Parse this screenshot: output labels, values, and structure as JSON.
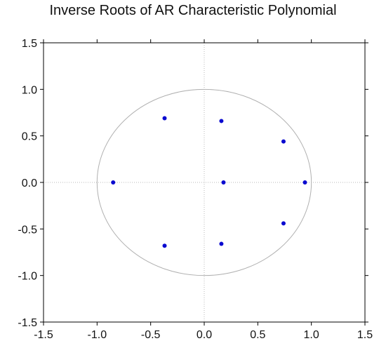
{
  "chart_data": {
    "type": "scatter",
    "title": "Inverse Roots of AR Characteristic Polynomial",
    "xlabel": "",
    "ylabel": "",
    "xlim": [
      -1.5,
      1.5
    ],
    "ylim": [
      -1.5,
      1.5
    ],
    "xticks": [
      "-1.5",
      "-1.0",
      "-0.5",
      "0.0",
      "0.5",
      "1.0",
      "1.5"
    ],
    "yticks": [
      "1.5",
      "1.0",
      "0.5",
      "0.0",
      "-0.5",
      "-1.0",
      "-1.5"
    ],
    "unit_circle": true,
    "reference_lines": "x=0, y=0 (dotted)",
    "grid": false,
    "colors": {
      "points": "#0a0ad0",
      "circle": "#b0b0b0",
      "axes": "#000000"
    },
    "series": [
      {
        "points": [
          {
            "x": -0.85,
            "y": 0.0
          },
          {
            "x": -0.37,
            "y": 0.69
          },
          {
            "x": -0.37,
            "y": -0.68
          },
          {
            "x": 0.16,
            "y": 0.66
          },
          {
            "x": 0.16,
            "y": -0.66
          },
          {
            "x": 0.18,
            "y": 0.0
          },
          {
            "x": 0.74,
            "y": 0.44
          },
          {
            "x": 0.74,
            "y": -0.44
          },
          {
            "x": 0.94,
            "y": 0.0
          }
        ]
      }
    ]
  }
}
